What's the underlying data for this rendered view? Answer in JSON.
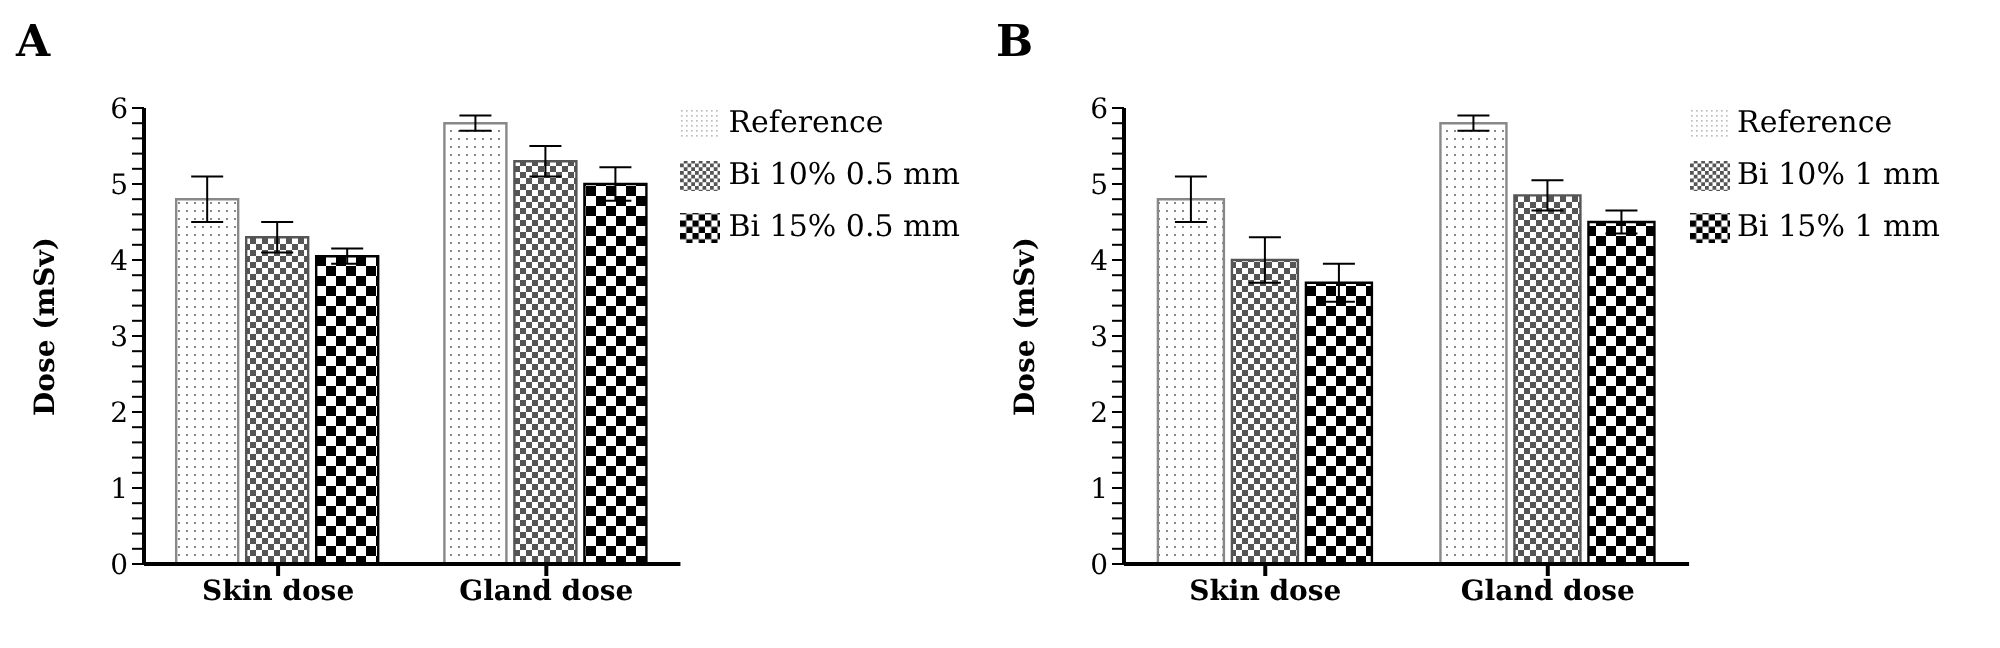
{
  "chart_data": [
    {
      "type": "bar",
      "title": "A",
      "ylabel": "Dose (mSv)",
      "categories": [
        "Skin dose",
        "Gland dose"
      ],
      "ylim": [
        0,
        6
      ],
      "yticks": [
        0,
        {
          "value": 0.2,
          "label": null
        },
        {
          "value": 0.4,
          "label": null
        },
        {
          "value": 0.6,
          "label": null
        },
        {
          "value": 0.8,
          "label": null
        },
        1,
        {
          "value": 1.2,
          "label": null
        },
        {
          "value": 1.4,
          "label": null
        },
        {
          "value": 1.6,
          "label": null
        },
        {
          "value": 1.8,
          "label": null
        },
        2,
        {
          "value": 2.2,
          "label": null
        },
        {
          "value": 2.4,
          "label": null
        },
        {
          "value": 2.6,
          "label": null
        },
        {
          "value": 2.8,
          "label": null
        },
        3,
        {
          "value": 3.2,
          "label": null
        },
        {
          "value": 3.4,
          "label": null
        },
        {
          "value": 3.6,
          "label": null
        },
        {
          "value": 3.8,
          "label": null
        },
        4,
        {
          "value": 4.2,
          "label": null
        },
        {
          "value": 4.4,
          "label": null
        },
        {
          "value": 4.6,
          "label": null
        },
        {
          "value": 4.8,
          "label": null
        },
        5,
        {
          "value": 5.2,
          "label": null
        },
        {
          "value": 5.4,
          "label": null
        },
        {
          "value": 5.6,
          "label": null
        },
        {
          "value": 5.8,
          "label": null
        },
        6
      ],
      "legend": "right",
      "grid": false,
      "series": [
        {
          "name": "Reference",
          "color": "#888888",
          "values": [
            4.8,
            5.8
          ],
          "errors": [
            0.3,
            0.1
          ]
        },
        {
          "name": "Bi 10%  0.5 mm",
          "color": "#555555",
          "values": [
            4.3,
            5.3
          ],
          "errors": [
            0.2,
            0.2
          ]
        },
        {
          "name": "Bi 15%  0.5 mm",
          "color": "#000000",
          "values": [
            4.05,
            5.0
          ],
          "errors": [
            0.1,
            0.22
          ]
        }
      ]
    },
    {
      "type": "bar",
      "title": "B",
      "ylabel": "Dose (mSv)",
      "categories": [
        "Skin dose",
        "Gland dose"
      ],
      "ylim": [
        0,
        6
      ],
      "yticks": [
        0,
        {
          "value": 0.2,
          "label": null
        },
        {
          "value": 0.4,
          "label": null
        },
        {
          "value": 0.6,
          "label": null
        },
        {
          "value": 0.8,
          "label": null
        },
        1,
        {
          "value": 1.2,
          "label": null
        },
        {
          "value": 1.4,
          "label": null
        },
        {
          "value": 1.6,
          "label": null
        },
        {
          "value": 1.8,
          "label": null
        },
        2,
        {
          "value": 2.2,
          "label": null
        },
        {
          "value": 2.4,
          "label": null
        },
        {
          "value": 2.6,
          "label": null
        },
        {
          "value": 2.8,
          "label": null
        },
        3,
        {
          "value": 3.2,
          "label": null
        },
        {
          "value": 3.4,
          "label": null
        },
        {
          "value": 3.6,
          "label": null
        },
        {
          "value": 3.8,
          "label": null
        },
        4,
        {
          "value": 4.2,
          "label": null
        },
        {
          "value": 4.4,
          "label": null
        },
        {
          "value": 4.6,
          "label": null
        },
        {
          "value": 4.8,
          "label": null
        },
        5,
        {
          "value": 5.2,
          "label": null
        },
        {
          "value": 5.4,
          "label": null
        },
        {
          "value": 5.6,
          "label": null
        },
        {
          "value": 5.8,
          "label": null
        },
        6
      ],
      "legend": "right",
      "grid": false,
      "series": [
        {
          "name": "Reference",
          "color": "#888888",
          "values": [
            4.8,
            5.8
          ],
          "errors": [
            0.3,
            0.1
          ]
        },
        {
          "name": "Bi 10% 1 mm",
          "color": "#555555",
          "values": [
            4.0,
            4.85
          ],
          "errors": [
            0.3,
            0.2
          ]
        },
        {
          "name": "Bi 15% 1 mm",
          "color": "#000000",
          "values": [
            3.7,
            4.5
          ],
          "errors": [
            0.25,
            0.15
          ]
        }
      ]
    }
  ]
}
